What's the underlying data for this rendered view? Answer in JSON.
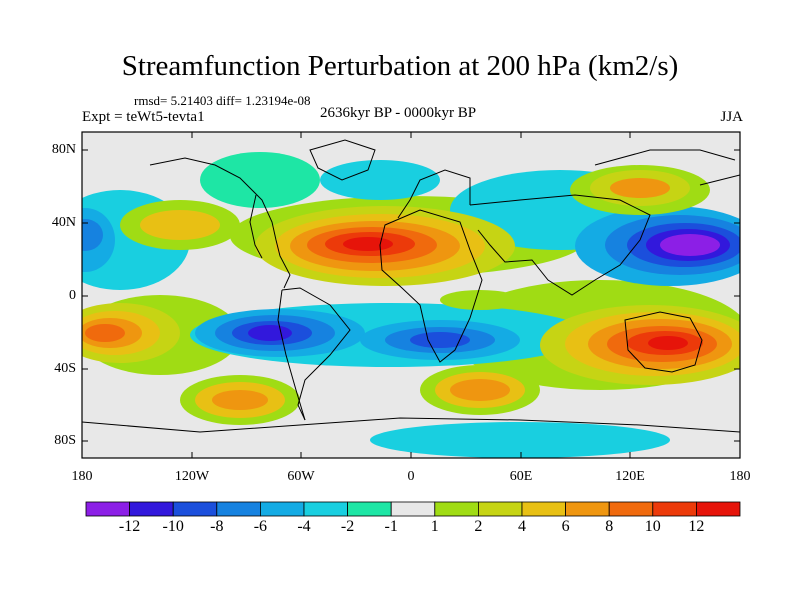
{
  "title": "Streamfunction Perturbation at 200 hPa (km2/s)",
  "stats": "rmsd= 5.21403 diff= 1.23194e-08",
  "experiment": "Expt = teWt5-tevta1",
  "period": "2636kyr BP - 0000kyr BP",
  "season": "JJA",
  "lat_labels": [
    "80N",
    "40N",
    "0",
    "40S",
    "80S"
  ],
  "lon_labels": [
    "180",
    "120W",
    "60W",
    "0",
    "60E",
    "120E",
    "180"
  ],
  "colorbar": {
    "labels": [
      "-12",
      "-10",
      "-8",
      "-6",
      "-4",
      "-2",
      "-1",
      "1",
      "2",
      "4",
      "6",
      "8",
      "10",
      "12"
    ],
    "colors": [
      "#8c1fe6",
      "#3218dc",
      "#1b4fdc",
      "#1682e0",
      "#14abe4",
      "#19cfe0",
      "#1ee6a5",
      "#e8e8e8",
      "#a0dc14",
      "#c6d414",
      "#e8c014",
      "#ef9610",
      "#f06a0d",
      "#ec3a0a",
      "#e6140a"
    ]
  },
  "chart_data": {
    "type": "heatmap",
    "title": "Streamfunction Perturbation at 200 hPa (km2/s)",
    "levels": [
      -12,
      -10,
      -8,
      -6,
      -4,
      -2,
      -1,
      1,
      2,
      4,
      6,
      8,
      10,
      12
    ],
    "field_features": [
      {
        "lon": 150,
        "lat": 30,
        "value": -12
      },
      {
        "lon": -80,
        "lat": -25,
        "value": -9
      },
      {
        "lon": 20,
        "lat": -28,
        "value": -6
      },
      {
        "lon": -175,
        "lat": 30,
        "value": -4
      },
      {
        "lon": -10,
        "lat": 30,
        "value": 11
      },
      {
        "lon": 125,
        "lat": -30,
        "value": 11
      },
      {
        "lon": -165,
        "lat": -25,
        "value": 8
      },
      {
        "lon": 60,
        "lat": -55,
        "value": 8
      },
      {
        "lon": -100,
        "lat": 45,
        "value": 4
      },
      {
        "lon": 140,
        "lat": 65,
        "value": 6
      },
      {
        "lon": -80,
        "lat": -60,
        "value": 5
      }
    ]
  }
}
